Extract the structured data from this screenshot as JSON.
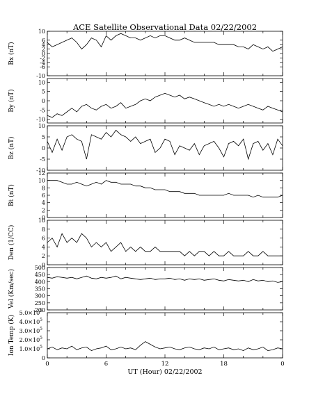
{
  "chart_data": {
    "type": "line",
    "title": "ACE Satellite Observational Data   02/22/2002",
    "xlabel": "UT (Hour)   02/22/2002",
    "x_ticks": [
      "0",
      "6",
      "12",
      "18",
      "0"
    ],
    "xlim": [
      0,
      24
    ],
    "panels": [
      {
        "ylabel": "Bx (nT)",
        "ylim": [
          -10,
          10
        ],
        "yticks": [
          "10",
          "6",
          "4",
          "2",
          "0",
          "-2",
          "-4",
          "-6",
          "-10"
        ],
        "yticks_vals": [
          10,
          6,
          4,
          2,
          0,
          -2,
          -4,
          -6,
          -10
        ],
        "series": [
          {
            "x": [
              0,
              0.5,
              1,
              1.5,
              2,
              2.5,
              3,
              3.5,
              4,
              4.5,
              5,
              5.5,
              6,
              6.5,
              7,
              7.5,
              8,
              8.5,
              9,
              9.5,
              10,
              10.5,
              11,
              11.5,
              12,
              12.5,
              13,
              13.5,
              14,
              14.5,
              15,
              15.5,
              16,
              16.5,
              17,
              17.5,
              18,
              18.5,
              19,
              19.5,
              20,
              20.5,
              21,
              21.5,
              22,
              22.5,
              23,
              23.5,
              24
            ],
            "y": [
              5,
              3,
              4,
              5,
              6,
              7,
              5,
              2,
              4,
              7,
              6,
              3,
              8,
              6,
              8,
              9,
              8,
              7,
              7,
              6,
              7,
              8,
              7,
              8,
              8,
              7,
              6,
              6,
              7,
              6,
              5,
              5,
              5,
              5,
              5,
              4,
              4,
              4,
              4,
              3,
              3,
              2,
              4,
              3,
              2,
              3,
              1,
              2,
              3
            ]
          }
        ]
      },
      {
        "ylabel": "By (nT)",
        "ylim": [
          -12,
          12
        ],
        "yticks": [
          "10",
          "5",
          "0",
          "-5",
          "-10"
        ],
        "yticks_vals": [
          10,
          5,
          0,
          -5,
          -10
        ],
        "series": [
          {
            "x": [
              0,
              0.5,
              1,
              1.5,
              2,
              2.5,
              3,
              3.5,
              4,
              4.5,
              5,
              5.5,
              6,
              6.5,
              7,
              7.5,
              8,
              8.5,
              9,
              9.5,
              10,
              10.5,
              11,
              11.5,
              12,
              12.5,
              13,
              13.5,
              14,
              14.5,
              15,
              15.5,
              16,
              16.5,
              17,
              17.5,
              18,
              18.5,
              19,
              19.5,
              20,
              20.5,
              21,
              21.5,
              22,
              22.5,
              23,
              23.5,
              24
            ],
            "y": [
              -8,
              -9,
              -7,
              -8,
              -6,
              -4,
              -6,
              -3,
              -2,
              -4,
              -5,
              -3,
              -2,
              -4,
              -3,
              -1,
              -4,
              -3,
              -2,
              0,
              1,
              0,
              2,
              3,
              4,
              3,
              2,
              3,
              1,
              2,
              1,
              0,
              -1,
              -2,
              -3,
              -2,
              -3,
              -2,
              -3,
              -4,
              -3,
              -2,
              -3,
              -4,
              -5,
              -3,
              -4,
              -5,
              -6
            ]
          }
        ]
      },
      {
        "ylabel": "Bz (nT)",
        "ylim": [
          -10,
          10
        ],
        "yticks": [
          "10",
          "5",
          "0",
          "-5",
          "-10"
        ],
        "yticks_vals": [
          10,
          5,
          0,
          -5,
          -10
        ],
        "series": [
          {
            "x": [
              0,
              0.5,
              1,
              1.5,
              2,
              2.5,
              3,
              3.5,
              4,
              4.5,
              5,
              5.5,
              6,
              6.5,
              7,
              7.5,
              8,
              8.5,
              9,
              9.5,
              10,
              10.5,
              11,
              11.5,
              12,
              12.5,
              13,
              13.5,
              14,
              14.5,
              15,
              15.5,
              16,
              16.5,
              17,
              17.5,
              18,
              18.5,
              19,
              19.5,
              20,
              20.5,
              21,
              21.5,
              22,
              22.5,
              23,
              23.5,
              24
            ],
            "y": [
              3,
              -2,
              4,
              -1,
              5,
              6,
              4,
              3,
              -5,
              6,
              5,
              4,
              7,
              5,
              8,
              6,
              5,
              3,
              5,
              2,
              3,
              4,
              -2,
              0,
              4,
              3,
              -3,
              1,
              0,
              -1,
              2,
              -3,
              1,
              2,
              3,
              0,
              -4,
              2,
              3,
              1,
              4,
              -5,
              2,
              3,
              -1,
              2,
              -3,
              4,
              1
            ]
          }
        ]
      },
      {
        "ylabel": "Bt (nT)",
        "ylim": [
          0,
          12
        ],
        "yticks": [
          "12",
          "10",
          "8",
          "6",
          "4",
          "2",
          "0"
        ],
        "yticks_vals": [
          12,
          10,
          8,
          6,
          4,
          2,
          0
        ],
        "series": [
          {
            "x": [
              0,
              0.5,
              1,
              1.5,
              2,
              2.5,
              3,
              3.5,
              4,
              4.5,
              5,
              5.5,
              6,
              6.5,
              7,
              7.5,
              8,
              8.5,
              9,
              9.5,
              10,
              10.5,
              11,
              11.5,
              12,
              12.5,
              13,
              13.5,
              14,
              14.5,
              15,
              15.5,
              16,
              16.5,
              17,
              17.5,
              18,
              18.5,
              19,
              19.5,
              20,
              20.5,
              21,
              21.5,
              22,
              22.5,
              23,
              23.5,
              24
            ],
            "y": [
              10,
              10,
              10,
              9.5,
              9,
              9,
              9.5,
              9,
              8.5,
              9,
              9.5,
              9,
              10,
              9.5,
              9.5,
              9,
              9,
              9,
              8.5,
              8.5,
              8,
              8,
              7.5,
              7.5,
              7.5,
              7,
              7,
              7,
              6.5,
              6.5,
              6.5,
              6,
              6,
              6,
              6,
              6,
              6,
              6.5,
              6,
              6,
              6,
              6,
              5.5,
              6,
              5.5,
              5.5,
              5.5,
              5.5,
              6
            ]
          }
        ]
      },
      {
        "ylabel": "Den (1/CC)",
        "ylim": [
          0,
          10
        ],
        "yticks": [
          "10",
          "8",
          "6",
          "4",
          "2",
          "0"
        ],
        "yticks_vals": [
          10,
          8,
          6,
          4,
          2,
          0
        ],
        "series": [
          {
            "x": [
              0,
              0.5,
              1,
              1.5,
              2,
              2.5,
              3,
              3.5,
              4,
              4.5,
              5,
              5.5,
              6,
              6.5,
              7,
              7.5,
              8,
              8.5,
              9,
              9.5,
              10,
              10.5,
              11,
              11.5,
              12,
              12.5,
              13,
              13.5,
              14,
              14.5,
              15,
              15.5,
              16,
              16.5,
              17,
              17.5,
              18,
              18.5,
              19,
              19.5,
              20,
              20.5,
              21,
              21.5,
              22,
              22.5,
              23,
              23.5,
              24
            ],
            "y": [
              5,
              6,
              4,
              7,
              5,
              6,
              5,
              7,
              6,
              4,
              5,
              4,
              5,
              3,
              4,
              5,
              3,
              4,
              3,
              4,
              3,
              3,
              4,
              3,
              3,
              3,
              3,
              3,
              2,
              3,
              2,
              3,
              3,
              2,
              3,
              2,
              2,
              3,
              2,
              2,
              2,
              3,
              2,
              2,
              3,
              2,
              2,
              2,
              2
            ]
          }
        ]
      },
      {
        "ylabel": "Vel (Km/sec)",
        "ylim": [
          200,
          500
        ],
        "yticks": [
          "500",
          "450",
          "400",
          "350",
          "300",
          "250",
          "200"
        ],
        "yticks_vals": [
          500,
          450,
          400,
          350,
          300,
          250,
          200
        ],
        "series": [
          {
            "x": [
              0,
              0.5,
              1,
              1.5,
              2,
              2.5,
              3,
              3.5,
              4,
              4.5,
              5,
              5.5,
              6,
              6.5,
              7,
              7.5,
              8,
              8.5,
              9,
              9.5,
              10,
              10.5,
              11,
              11.5,
              12,
              12.5,
              13,
              13.5,
              14,
              14.5,
              15,
              15.5,
              16,
              16.5,
              17,
              17.5,
              18,
              18.5,
              19,
              19.5,
              20,
              20.5,
              21,
              21.5,
              22,
              22.5,
              23,
              23.5,
              24
            ],
            "y": [
              430,
              425,
              435,
              430,
              425,
              430,
              420,
              430,
              440,
              425,
              420,
              430,
              425,
              430,
              440,
              420,
              430,
              425,
              420,
              415,
              420,
              425,
              415,
              420,
              420,
              425,
              415,
              420,
              410,
              420,
              415,
              420,
              410,
              415,
              420,
              410,
              405,
              415,
              410,
              405,
              410,
              400,
              415,
              405,
              410,
              400,
              405,
              395,
              400
            ]
          }
        ]
      },
      {
        "ylabel": "Ion Temp (K)",
        "ylim": [
          0,
          500000
        ],
        "yticks": [
          "5.0×10",
          "4.0×10",
          "3.0×10",
          "2.0×10",
          "1.0×10",
          "0"
        ],
        "yticks_exp": "5",
        "yticks_vals": [
          500000,
          400000,
          300000,
          200000,
          100000,
          0
        ],
        "series": [
          {
            "x": [
              0,
              0.5,
              1,
              1.5,
              2,
              2.5,
              3,
              3.5,
              4,
              4.5,
              5,
              5.5,
              6,
              6.5,
              7,
              7.5,
              8,
              8.5,
              9,
              9.5,
              10,
              10.5,
              11,
              11.5,
              12,
              12.5,
              13,
              13.5,
              14,
              14.5,
              15,
              15.5,
              16,
              16.5,
              17,
              17.5,
              18,
              18.5,
              19,
              19.5,
              20,
              20.5,
              21,
              21.5,
              22,
              22.5,
              23,
              23.5,
              24
            ],
            "y": [
              100000,
              120000,
              90000,
              110000,
              100000,
              130000,
              90000,
              110000,
              120000,
              80000,
              100000,
              110000,
              130000,
              90000,
              100000,
              120000,
              100000,
              110000,
              90000,
              140000,
              180000,
              150000,
              120000,
              100000,
              110000,
              120000,
              100000,
              90000,
              110000,
              120000,
              100000,
              90000,
              110000,
              100000,
              120000,
              90000,
              100000,
              110000,
              90000,
              100000,
              80000,
              110000,
              90000,
              100000,
              120000,
              80000,
              90000,
              110000,
              100000
            ]
          }
        ]
      }
    ]
  }
}
